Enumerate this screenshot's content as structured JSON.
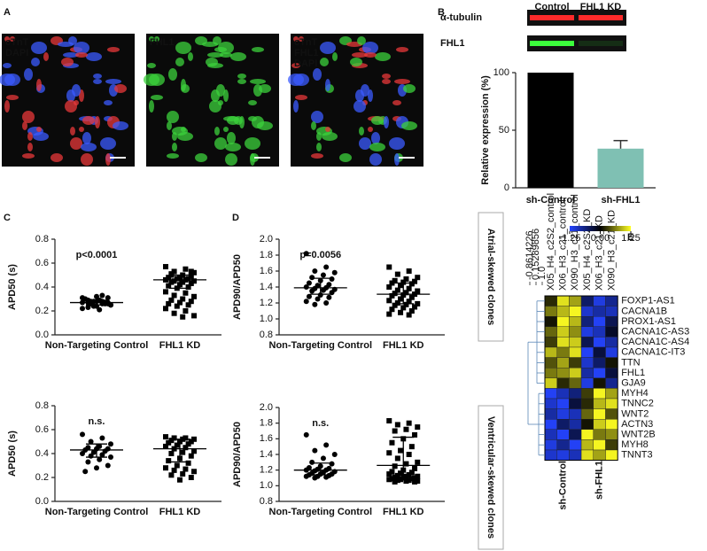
{
  "panel_labels": [
    "A",
    "B",
    "C",
    "D",
    "E"
  ],
  "images": [
    {
      "labels": [
        "cTnT",
        "DAPI"
      ],
      "colors": [
        "#e8383a",
        "#3b5bff"
      ]
    },
    {
      "labels": [
        "FHL1"
      ],
      "colors": [
        "#3cd23c"
      ]
    },
    {
      "labels": [
        "cTnT",
        "FHL1",
        "DAPI"
      ],
      "colors": [
        "#e8383a",
        "#3cd23c",
        "#3b5bff"
      ]
    }
  ],
  "blot": {
    "columns": [
      "Control",
      "FHL1 KD"
    ],
    "rows": [
      {
        "name": "α-tubulin",
        "color": "#ff2a2a"
      },
      {
        "name": "FHL1",
        "color": "#3cff3c"
      }
    ]
  },
  "side_labels": [
    "Atrial-skewed clones",
    "Ventricular-skewed clones"
  ],
  "chart_data": [
    {
      "type": "bar",
      "ylabel": "Relative expression (%)",
      "categories": [
        "sh-Control",
        "sh-FHL1"
      ],
      "values": [
        100,
        34
      ],
      "errors": [
        null,
        7
      ],
      "colors": [
        "#000000",
        "#7fc0b3"
      ],
      "ylim": [
        0,
        100
      ],
      "yticks": [
        0,
        50,
        100
      ]
    },
    {
      "type": "strip",
      "ylabel": "APD50 (s)",
      "annotation": "p<0.0001",
      "categories": [
        "Non-Targeting Control",
        "FHL1 KD"
      ],
      "ylim": [
        0,
        0.8
      ],
      "yticks": [
        {
          "value": 0,
          "label": "0.0"
        },
        0.2,
        0.4,
        0.6,
        0.8
      ],
      "groups": [
        {
          "marker": "circle",
          "center": 0.27,
          "low": 0.25,
          "high": 0.29,
          "values": [
            0.27,
            0.28,
            0.26,
            0.25,
            0.29,
            0.27,
            0.31,
            0.24,
            0.3,
            0.26,
            0.28,
            0.22,
            0.33,
            0.27,
            0.25,
            0.29,
            0.23,
            0.26,
            0.28,
            0.3,
            0.27,
            0.24,
            0.31,
            0.26,
            0.28,
            0.25,
            0.21,
            0.29,
            0.27,
            0.32
          ]
        },
        {
          "marker": "square",
          "center": 0.46,
          "low": 0.39,
          "high": 0.5,
          "values": [
            0.57,
            0.55,
            0.53,
            0.52,
            0.5,
            0.5,
            0.49,
            0.48,
            0.48,
            0.47,
            0.47,
            0.46,
            0.46,
            0.45,
            0.45,
            0.44,
            0.44,
            0.43,
            0.42,
            0.41,
            0.4,
            0.39,
            0.36,
            0.35,
            0.33,
            0.32,
            0.3,
            0.29,
            0.28,
            0.27,
            0.26,
            0.25,
            0.24,
            0.22,
            0.2,
            0.18,
            0.16,
            0.15,
            0.51,
            0.53
          ]
        }
      ]
    },
    {
      "type": "strip",
      "ylabel": "APD50 (s)",
      "annotation": "n.s.",
      "categories": [
        "Non-Targeting Control",
        "FHL1 KD"
      ],
      "ylim": [
        0,
        0.8
      ],
      "yticks": [
        {
          "value": 0,
          "label": "0.0"
        },
        0.2,
        0.4,
        0.6,
        0.8
      ],
      "groups": [
        {
          "marker": "circle",
          "center": 0.43,
          "low": 0.37,
          "high": 0.48,
          "values": [
            0.56,
            0.53,
            0.5,
            0.48,
            0.46,
            0.45,
            0.44,
            0.44,
            0.43,
            0.42,
            0.41,
            0.4,
            0.39,
            0.38,
            0.37,
            0.35,
            0.33,
            0.3,
            0.28,
            0.25
          ]
        },
        {
          "marker": "square",
          "center": 0.44,
          "low": 0.33,
          "high": 0.52,
          "values": [
            0.54,
            0.53,
            0.53,
            0.52,
            0.52,
            0.51,
            0.5,
            0.5,
            0.49,
            0.48,
            0.47,
            0.46,
            0.45,
            0.44,
            0.42,
            0.41,
            0.4,
            0.38,
            0.36,
            0.34,
            0.32,
            0.3,
            0.28,
            0.27,
            0.26,
            0.25,
            0.23,
            0.22,
            0.2,
            0.18
          ]
        }
      ]
    },
    {
      "type": "strip",
      "ylabel": "APD90/APD50",
      "annotation": "p=0.0056",
      "categories": [
        "Non-Targeting Control",
        "FHL1 KD"
      ],
      "ylim": [
        0.8,
        2.0
      ],
      "yticks": [
        0.8,
        {
          "value": 1,
          "label": "1.0"
        },
        1.2,
        1.4,
        1.6,
        1.8,
        {
          "value": 2,
          "label": "2.0"
        }
      ],
      "groups": [
        {
          "marker": "circle",
          "center": 1.39,
          "low": 1.31,
          "high": 1.51,
          "values": [
            1.82,
            1.65,
            1.6,
            1.58,
            1.55,
            1.52,
            1.5,
            1.48,
            1.45,
            1.43,
            1.42,
            1.4,
            1.39,
            1.38,
            1.37,
            1.36,
            1.35,
            1.33,
            1.3,
            1.28,
            1.27,
            1.25,
            1.22,
            1.2,
            1.18
          ]
        },
        {
          "marker": "square",
          "center": 1.31,
          "low": 1.19,
          "high": 1.45,
          "values": [
            1.65,
            1.6,
            1.56,
            1.52,
            1.5,
            1.48,
            1.47,
            1.46,
            1.45,
            1.44,
            1.42,
            1.4,
            1.38,
            1.36,
            1.35,
            1.33,
            1.32,
            1.31,
            1.3,
            1.29,
            1.27,
            1.25,
            1.23,
            1.22,
            1.2,
            1.19,
            1.18,
            1.17,
            1.15,
            1.14,
            1.12,
            1.1,
            1.08,
            1.06,
            1.05
          ]
        }
      ]
    },
    {
      "type": "strip",
      "ylabel": "APD90/APD50",
      "annotation": "n.s.",
      "categories": [
        "Non-Targeting Control",
        "FHL1 KD"
      ],
      "ylim": [
        0.8,
        2.0
      ],
      "yticks": [
        0.8,
        {
          "value": 1,
          "label": "1.0"
        },
        1.2,
        1.4,
        1.6,
        1.8,
        {
          "value": 2,
          "label": "2.0"
        }
      ],
      "groups": [
        {
          "marker": "circle",
          "center": 1.2,
          "low": 1.14,
          "high": 1.29,
          "values": [
            1.65,
            1.52,
            1.45,
            1.4,
            1.35,
            1.3,
            1.28,
            1.25,
            1.23,
            1.22,
            1.21,
            1.2,
            1.2,
            1.19,
            1.18,
            1.17,
            1.16,
            1.15,
            1.15,
            1.14,
            1.13,
            1.12,
            1.12,
            1.11,
            1.1
          ]
        },
        {
          "marker": "square",
          "center": 1.26,
          "low": 1.11,
          "high": 1.62,
          "values": [
            1.83,
            1.8,
            1.78,
            1.75,
            1.72,
            1.7,
            1.65,
            1.6,
            1.55,
            1.5,
            1.45,
            1.42,
            1.4,
            1.35,
            1.3,
            1.28,
            1.25,
            1.22,
            1.2,
            1.18,
            1.17,
            1.16,
            1.15,
            1.14,
            1.13,
            1.12,
            1.12,
            1.11,
            1.1,
            1.1,
            1.09,
            1.09,
            1.08,
            1.08,
            1.07,
            1.07,
            1.06,
            1.06,
            1.05,
            1.05
          ]
        }
      ]
    },
    {
      "type": "heatmap",
      "zlim": [
        -1.25,
        1.25
      ],
      "zticks": [
        -1.25,
        {
          "value": 0,
          "label": "0.00"
        },
        1.25
      ],
      "colors": [
        "#2444ff",
        "#000000",
        "#ffff22"
      ],
      "dendrogram_ticks": [
        -0.8614226,
        0.15289856,
        {
          "value": 1,
          "label": "1.0"
        }
      ],
      "columns": [
        "X05_H4_c2S2_control",
        "X06_H3_c21_control",
        "X090_H3_c21_control",
        "X05_H4_c2S2_KD",
        "X06_H3_c21_KD",
        "X090_H3_c21_KD"
      ],
      "group_labels": [
        "sh-Control",
        "sh-FHL1"
      ],
      "rows": [
        "FOXP1-AS1",
        "CACNA1B",
        "PROX1-AS1",
        "CACNA1C-AS3",
        "CACNA1C-AS4",
        "CACNA1C-IT3",
        "TTN",
        "FHL1",
        "GJA9",
        "MYH4",
        "TNNC2",
        "WNT2",
        "ACTN3",
        "WNT2B",
        "MYH8",
        "TNNT3"
      ],
      "values": [
        [
          0.2,
          1.1,
          0.8,
          -0.5,
          -1.1,
          -0.7
        ],
        [
          0.6,
          0.9,
          1.2,
          -1.0,
          -0.8,
          -0.9
        ],
        [
          0.1,
          1.2,
          0.9,
          -0.6,
          -1.2,
          -0.4
        ],
        [
          0.5,
          1.0,
          0.7,
          -1.1,
          -0.9,
          -0.2
        ],
        [
          0.3,
          1.1,
          1.0,
          -0.4,
          -1.2,
          -0.8
        ],
        [
          0.9,
          0.6,
          1.1,
          -1.2,
          -0.3,
          -1.1
        ],
        [
          0.4,
          0.8,
          0.3,
          -1.0,
          -0.5,
          0.1
        ],
        [
          0.6,
          0.7,
          1.0,
          -0.8,
          -1.2,
          -0.3
        ],
        [
          1.0,
          0.2,
          0.5,
          -1.1,
          0.1,
          -0.7
        ],
        [
          -1.2,
          -0.9,
          -0.6,
          0.3,
          1.2,
          0.8
        ],
        [
          -1.0,
          -1.2,
          -0.3,
          0.2,
          0.9,
          1.1
        ],
        [
          -0.8,
          -1.1,
          -0.9,
          0.5,
          1.2,
          0.4
        ],
        [
          -1.2,
          -0.5,
          -0.8,
          0.1,
          1.0,
          1.2
        ],
        [
          -0.9,
          -1.2,
          -0.4,
          1.2,
          0.6,
          0.7
        ],
        [
          -1.1,
          -0.7,
          -1.2,
          0.9,
          1.2,
          0.3
        ],
        [
          -1.0,
          -1.1,
          -0.9,
          1.1,
          0.8,
          1.2
        ]
      ]
    }
  ]
}
